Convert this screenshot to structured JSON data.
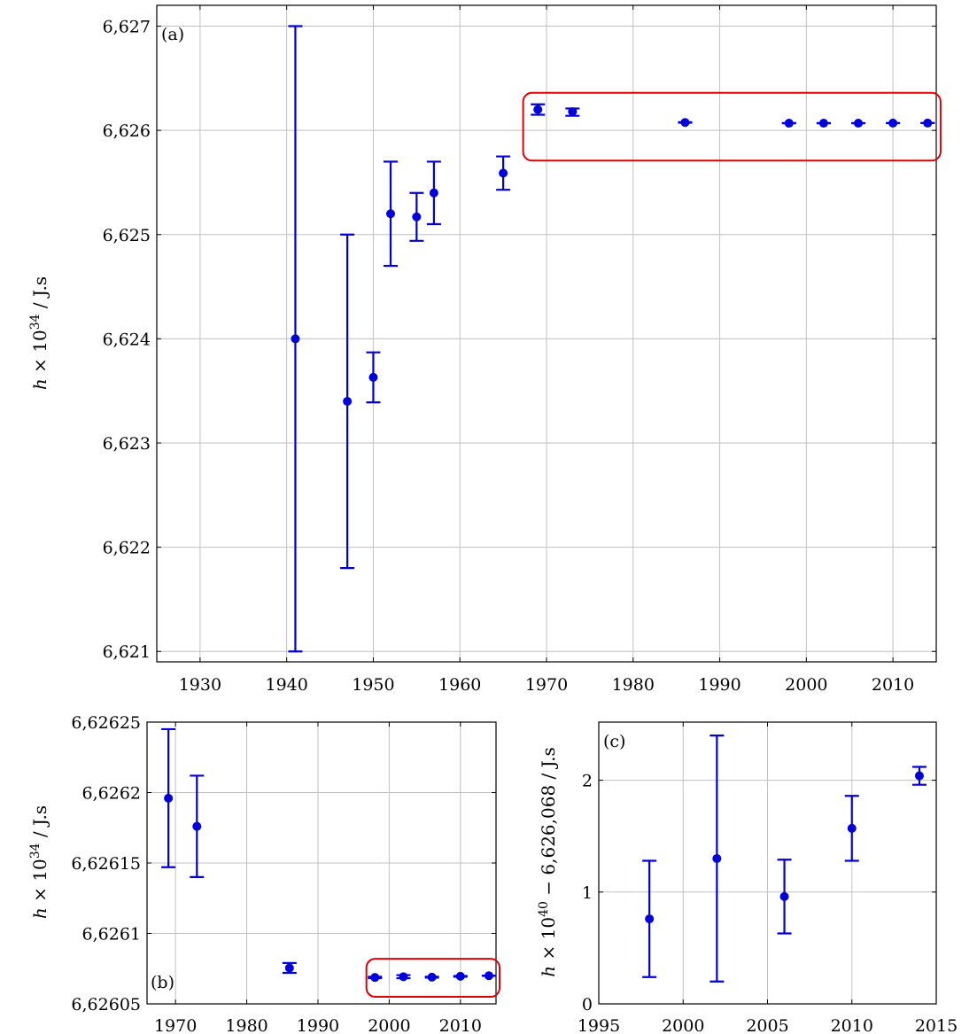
{
  "colors": {
    "series": "#0000dd",
    "highlight": "#e00000",
    "grid": "#c0c0c0"
  },
  "chart_data": [
    {
      "id": "a",
      "type": "scatter",
      "panel_label": "(a)",
      "xlabel": "",
      "ylabel": "h × 10^34 / J.s",
      "ylabel_parts": {
        "pre": "h × 10",
        "sup": "34",
        "post": " / J.s"
      },
      "xlim": [
        1925,
        2015
      ],
      "ylim": [
        6.6209,
        6.6272
      ],
      "xticks": [
        1930,
        1940,
        1950,
        1960,
        1970,
        1980,
        1990,
        2000,
        2010
      ],
      "xtick_labels": [
        "1930",
        "1940",
        "1950",
        "1960",
        "1970",
        "1980",
        "1990",
        "2000",
        "2010"
      ],
      "yticks": [
        6.621,
        6.622,
        6.623,
        6.624,
        6.625,
        6.626,
        6.627
      ],
      "ytick_labels": [
        "6,621",
        "6,622",
        "6,623",
        "6,624",
        "6,625",
        "6,626",
        "6,627"
      ],
      "grid": true,
      "highlight_box": {
        "x": [
          1967.3,
          2015.5
        ],
        "y": [
          6.62571,
          6.62636
        ]
      },
      "points": [
        {
          "x": 1941,
          "y": 6.624,
          "ylo": 6.621,
          "yhi": 6.627
        },
        {
          "x": 1947,
          "y": 6.6234,
          "ylo": 6.6218,
          "yhi": 6.625
        },
        {
          "x": 1950,
          "y": 6.62363,
          "ylo": 6.62339,
          "yhi": 6.62387
        },
        {
          "x": 1952,
          "y": 6.6252,
          "ylo": 6.6247,
          "yhi": 6.6257
        },
        {
          "x": 1955,
          "y": 6.62517,
          "ylo": 6.62494,
          "yhi": 6.6254
        },
        {
          "x": 1957,
          "y": 6.6254,
          "ylo": 6.6251,
          "yhi": 6.6257
        },
        {
          "x": 1965,
          "y": 6.62559,
          "ylo": 6.62543,
          "yhi": 6.62575
        },
        {
          "x": 1969,
          "y": 6.6262,
          "ylo": 6.62615,
          "yhi": 6.62625
        },
        {
          "x": 1973,
          "y": 6.62618,
          "ylo": 6.62614,
          "yhi": 6.62621
        },
        {
          "x": 1986,
          "y": 6.626076,
          "ylo": 6.626073,
          "yhi": 6.626079
        },
        {
          "x": 1998,
          "y": 6.626069,
          "ylo": 6.626068,
          "yhi": 6.62607
        },
        {
          "x": 2002,
          "y": 6.626069,
          "ylo": 6.626068,
          "yhi": 6.62607
        },
        {
          "x": 2006,
          "y": 6.626069,
          "ylo": 6.626068,
          "yhi": 6.62607
        },
        {
          "x": 2010,
          "y": 6.62607,
          "ylo": 6.626069,
          "yhi": 6.62607
        },
        {
          "x": 2014,
          "y": 6.62607,
          "ylo": 6.62607,
          "yhi": 6.62607
        }
      ]
    },
    {
      "id": "b",
      "type": "scatter",
      "panel_label": "(b)",
      "xlabel": "",
      "ylabel": "h × 10^34 / J.s",
      "ylabel_parts": {
        "pre": "h × 10",
        "sup": "34",
        "post": " / J.s"
      },
      "xlim": [
        1966,
        2015
      ],
      "ylim": [
        6.62605,
        6.62625
      ],
      "xticks": [
        1970,
        1980,
        1990,
        2000,
        2010
      ],
      "xtick_labels": [
        "1970",
        "1980",
        "1990",
        "2000",
        "2010"
      ],
      "yticks": [
        6.62605,
        6.6261,
        6.62615,
        6.6262,
        6.62625
      ],
      "ytick_labels": [
        "6,62605",
        "6,6261",
        "6,62615",
        "6,6262",
        "6,62625"
      ],
      "grid": true,
      "highlight_box": {
        "x": [
          1996.8,
          2015.5
        ],
        "y": [
          6.626055,
          6.626082
        ]
      },
      "points": [
        {
          "x": 1969,
          "y": 6.626196,
          "ylo": 6.626147,
          "yhi": 6.626245
        },
        {
          "x": 1973,
          "y": 6.626176,
          "ylo": 6.62614,
          "yhi": 6.626212
        },
        {
          "x": 1986,
          "y": 6.6260755,
          "ylo": 6.626072,
          "yhi": 6.626079
        },
        {
          "x": 1998,
          "y": 6.62606876,
          "ylo": 6.62606824,
          "yhi": 6.62606928
        },
        {
          "x": 2002,
          "y": 6.6260693,
          "ylo": 6.6260682,
          "yhi": 6.6260704
        },
        {
          "x": 2006,
          "y": 6.62606896,
          "ylo": 6.62606863,
          "yhi": 6.62606929
        },
        {
          "x": 2010,
          "y": 6.62606957,
          "ylo": 6.62606928,
          "yhi": 6.62606986
        },
        {
          "x": 2014,
          "y": 6.62607,
          "ylo": 6.6260699,
          "yhi": 6.6260701
        }
      ]
    },
    {
      "id": "c",
      "type": "scatter",
      "panel_label": "(c)",
      "xlabel": "",
      "ylabel": "h × 10^40 − 6,626,068 / J.s",
      "ylabel_parts": {
        "pre": "h × 10",
        "sup": "40",
        "post": " − 6,626,068 / J.s"
      },
      "xlim": [
        1995,
        2015
      ],
      "ylim": [
        0,
        2.52
      ],
      "xticks": [
        1995,
        2000,
        2005,
        2010,
        2015
      ],
      "xtick_labels": [
        "1995",
        "2000",
        "2005",
        "2010",
        "2015"
      ],
      "yticks": [
        0,
        1,
        2
      ],
      "ytick_labels": [
        "0",
        "1",
        "2"
      ],
      "grid": true,
      "points": [
        {
          "x": 1998,
          "y": 0.76,
          "ylo": 0.24,
          "yhi": 1.28
        },
        {
          "x": 2002,
          "y": 1.3,
          "ylo": 0.2,
          "yhi": 2.4
        },
        {
          "x": 2006,
          "y": 0.96,
          "ylo": 0.63,
          "yhi": 1.29
        },
        {
          "x": 2010,
          "y": 1.57,
          "ylo": 1.28,
          "yhi": 1.86
        },
        {
          "x": 2014,
          "y": 2.04,
          "ylo": 1.96,
          "yhi": 2.12
        }
      ]
    }
  ]
}
